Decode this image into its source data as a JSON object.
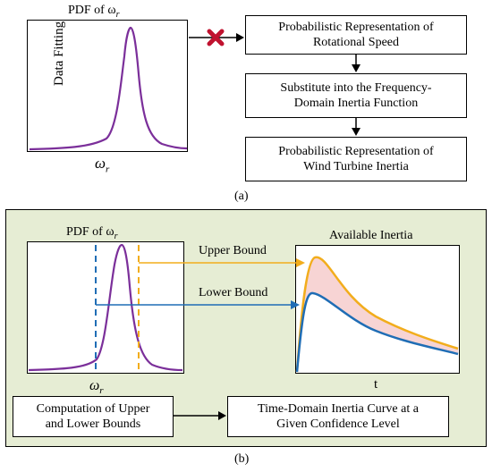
{
  "part_a": {
    "pdf_title": "PDF of ω",
    "pdf_title_sub": "r",
    "curve_label": "Data Fitting",
    "x_axis_symbol": "ω",
    "x_axis_sub": "r",
    "cross_icon": "red-x-cross",
    "flow_boxes": [
      "Probabilistic Representation of\nRotational Speed",
      "Substitute into the Frequency-\nDomain Inertia Function",
      "Probabilistic Representation of\nWind Turbine Inertia"
    ],
    "caption": "(a)"
  },
  "part_b": {
    "pdf_title": "PDF of ω",
    "pdf_title_sub": "r",
    "x_axis_symbol": "ω",
    "x_axis_sub": "r",
    "upper_label": "Upper Bound",
    "lower_label": "Lower Bound",
    "inertia_title": "Available Inertia",
    "inertia_x_label": "t",
    "box_left": "Computation of Upper\nand Lower Bounds",
    "box_right": "Time-Domain Inertia Curve at a\nGiven Confidence Level",
    "caption": "(b)",
    "colors": {
      "pdf_curve": "#7b2f9a",
      "upper": "#f2ad1c",
      "lower": "#1f6db5",
      "band_fill": "#f7d4d4",
      "panel_bg": "#e6edd4",
      "cross": "#c0122f"
    }
  }
}
